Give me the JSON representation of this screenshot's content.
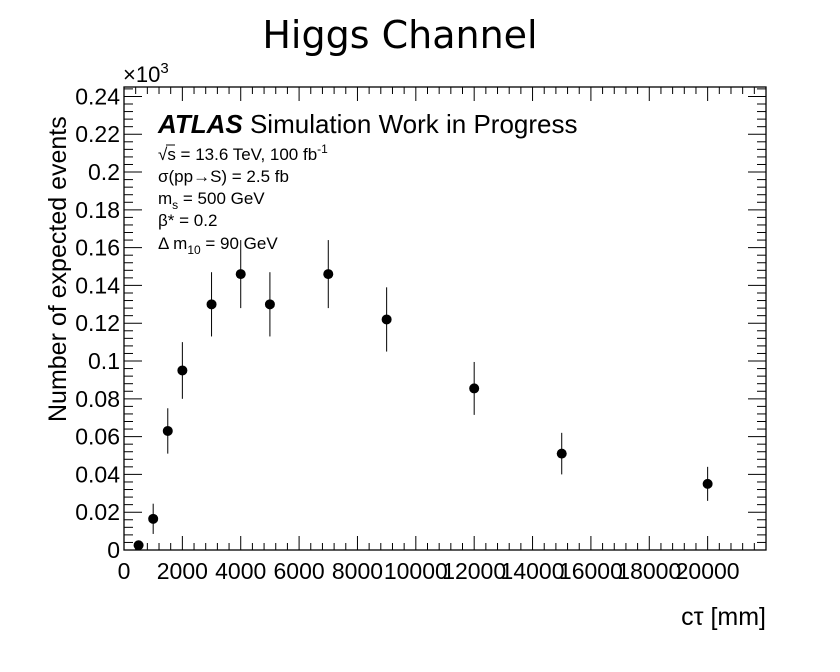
{
  "chart_data": {
    "type": "scatter",
    "title": "Higgs Channel",
    "xlabel": "cτ [mm]",
    "ylabel": "Number of expected events",
    "y_multiplier": "×10",
    "y_multiplier_exp": "3",
    "xlim": [
      0,
      22000
    ],
    "ylim": [
      0,
      0.245
    ],
    "x_ticks": [
      0,
      2000,
      4000,
      6000,
      8000,
      10000,
      12000,
      14000,
      16000,
      18000,
      20000
    ],
    "x_tick_labels": [
      "0",
      "2000",
      "4000",
      "6000",
      "8000",
      "10000",
      "12000",
      "14000",
      "16000",
      "18000",
      "20000"
    ],
    "y_ticks": [
      0,
      0.02,
      0.04,
      0.06,
      0.08,
      0.1,
      0.12,
      0.14,
      0.16,
      0.18,
      0.2,
      0.22,
      0.24
    ],
    "y_tick_labels": [
      "0",
      "0.02",
      "0.04",
      "0.06",
      "0.08",
      "0.1",
      "0.12",
      "0.14",
      "0.16",
      "0.18",
      "0.2",
      "0.22",
      "0.24"
    ],
    "grid": false,
    "series": [
      {
        "x": [
          500,
          1000,
          1500,
          2000,
          3000,
          4000,
          5000,
          7000,
          9000,
          12000,
          15000,
          20000
        ],
        "y": [
          0.0025,
          0.0165,
          0.063,
          0.095,
          0.13,
          0.146,
          0.13,
          0.146,
          0.122,
          0.0855,
          0.051,
          0.035
        ],
        "y_err": [
          0.0025,
          0.008,
          0.012,
          0.015,
          0.017,
          0.018,
          0.017,
          0.018,
          0.017,
          0.014,
          0.011,
          0.009
        ],
        "marker": "circle",
        "color": "#000000"
      }
    ],
    "annotations": {
      "atlas_label": "ATLAS",
      "atlas_suffix": " Simulation Work in Progress",
      "line1_pre": "√s = 13.6 TeV, 100 fb",
      "line1_sup": "-1",
      "line2": "σ(pp→S) = 2.5 fb",
      "line3_pre": "m",
      "line3_sub": "s",
      "line3_post": " = 500 GeV",
      "line4": "β* = 0.2",
      "line5_pre": "Δ m",
      "line5_sub": "10",
      "line5_post": " = 90 GeV"
    }
  }
}
